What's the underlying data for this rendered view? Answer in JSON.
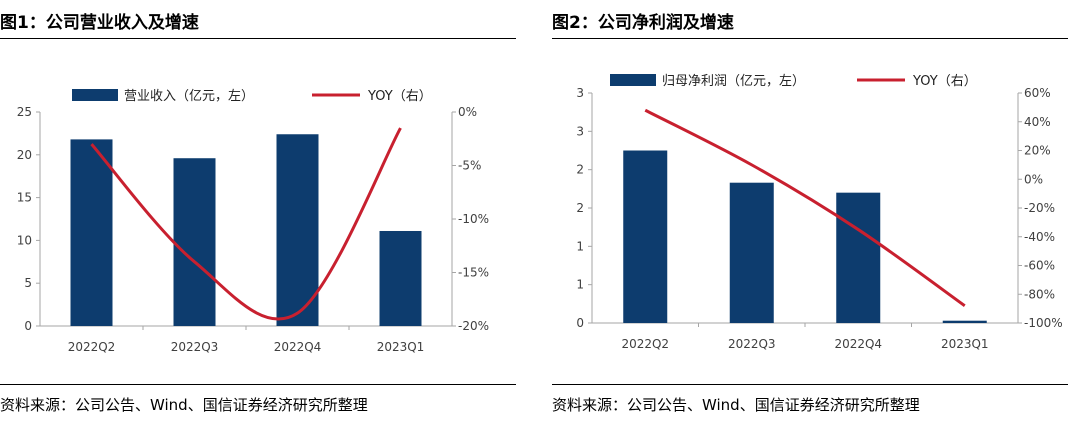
{
  "charts": [
    {
      "title": "图1：公司营业收入及增速",
      "source": "资料来源：公司公告、Wind、国信证券经济研究所整理"
    },
    {
      "title": "图2：公司净利润及增速",
      "source": "资料来源：公司公告、Wind、国信证券经济研究所整理"
    }
  ],
  "colors": {
    "bar": "#0d3c6e",
    "line": "#c8202f",
    "axis": "#a6a6a6"
  },
  "chart_data": [
    {
      "type": "bar+line",
      "title": "图1：公司营业收入及增速",
      "categories": [
        "2022Q2",
        "2022Q3",
        "2022Q4",
        "2023Q1"
      ],
      "series": [
        {
          "name": "营业收入（亿元，左）",
          "type": "bar",
          "axis": "left",
          "values": [
            21.8,
            19.6,
            22.4,
            11.1
          ]
        },
        {
          "name": "YOY（右）",
          "type": "line",
          "axis": "right",
          "values": [
            -3.0,
            -14.0,
            -18.8,
            -1.5
          ]
        }
      ],
      "y_left": {
        "min": 0,
        "max": 25,
        "step": 5,
        "ticks": [
          "0",
          "5",
          "10",
          "15",
          "20",
          "25"
        ]
      },
      "y_right": {
        "min": -20,
        "max": 0,
        "step": 5,
        "ticks": [
          "-20%",
          "-15%",
          "-10%",
          "-5%",
          "0%"
        ]
      },
      "legend_position": "top"
    },
    {
      "type": "bar+line",
      "title": "图2：公司净利润及增速",
      "categories": [
        "2022Q2",
        "2022Q3",
        "2022Q4",
        "2023Q1"
      ],
      "series": [
        {
          "name": "归母净利润（亿元，左）",
          "type": "bar",
          "axis": "left",
          "values": [
            2.25,
            1.83,
            1.7,
            0.03
          ]
        },
        {
          "name": "YOY（右）",
          "type": "line",
          "axis": "right",
          "values": [
            48,
            10,
            -35,
            -88
          ]
        }
      ],
      "y_left": {
        "min": 0,
        "max": 3,
        "step": 0.5,
        "ticks": [
          "0",
          "1",
          "1",
          "2",
          "2",
          "3",
          "3"
        ]
      },
      "y_right": {
        "min": -100,
        "max": 60,
        "step": 20,
        "ticks": [
          "-100%",
          "-80%",
          "-60%",
          "-40%",
          "-20%",
          "0%",
          "20%",
          "40%",
          "60%"
        ]
      },
      "legend_position": "top"
    }
  ]
}
